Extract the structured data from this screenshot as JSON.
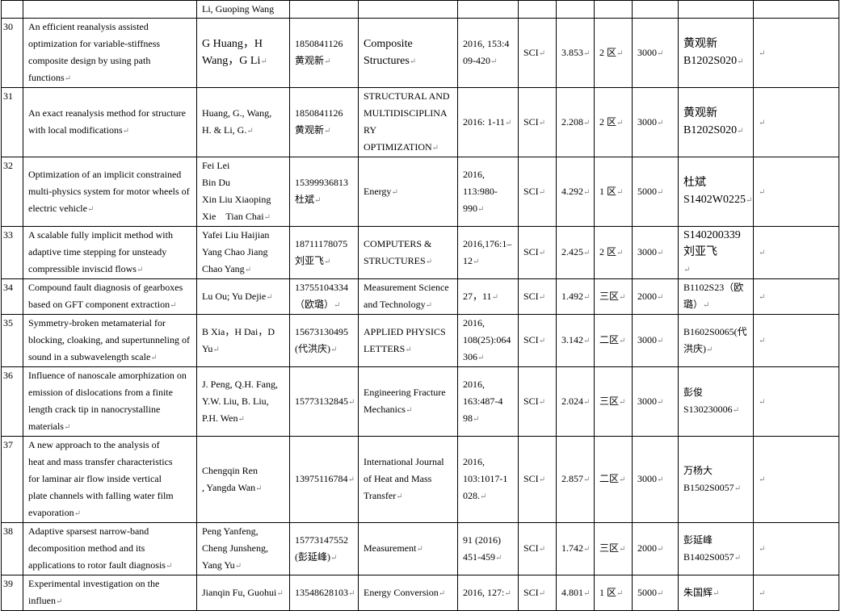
{
  "paragraph_mark": "↵",
  "rows": [
    {
      "cells": [
        "",
        "",
        "Li, Guoping Wang",
        "",
        "",
        "",
        "",
        "",
        "",
        "",
        "",
        ""
      ]
    },
    {
      "cells": [
        "30",
        "An efficient reanalysis assisted\noptimization for variable-stiffness\ncomposite design by using path functions",
        "G Huang，H\nWang，G Li",
        "1850841126\n黄观新",
        "Composite\nStructures",
        "2016, 153:4\n09-420",
        "SCI",
        "3.853",
        "2 区",
        "3000",
        "黄观新\nB1202S020",
        ""
      ]
    },
    {
      "cells": [
        "31",
        "An exact reanalysis method for structure\nwith local modifications",
        "Huang, G., Wang,\nH. & Li, G.",
        "1850841126\n黄观新",
        "STRUCTURAL AND\nMULTIDISCIPLINA\nRY OPTIMIZATION",
        "2016: 1-11",
        "SCI",
        "2.208",
        "2 区",
        "3000",
        "黄观新\nB1202S020",
        ""
      ]
    },
    {
      "cells": [
        "32",
        "Optimization of an implicit constrained\nmulti-physics system for motor wheels of\nelectric vehicle",
        "Fei Lei\nBin Du\nXin Liu Xiaoping\nXie　Tian Chai",
        "15399936813\n杜斌",
        "Energy",
        "2016,\n113:980-990",
        "SCI",
        "4.292",
        "1 区",
        "5000",
        "杜斌\nS1402W0225",
        ""
      ]
    },
    {
      "cells": [
        "33",
        "A scalable fully implicit method with\nadaptive time stepping for unsteady\ncompressible inviscid flows",
        "Yafei Liu Haijian\nYang Chao Jiang\nChao Yang",
        "18711178075\n刘亚飞",
        "COMPUTERS &\nSTRUCTURES",
        "2016,176:1–\n12",
        "SCI",
        "2.425",
        "2 区",
        "3000",
        "S140200339\n刘亚飞\n",
        ""
      ]
    },
    {
      "cells": [
        "34",
        "Compound fault diagnosis of gearboxes\nbased on GFT component extraction",
        "Lu Ou; Yu Dejie",
        "13755104334\n（欧璐）",
        "Measurement Science\nand Technology",
        "27，11",
        "SCI",
        "1.492",
        "三区",
        "2000",
        "B1102S23（欧\n璐）",
        ""
      ]
    },
    {
      "cells": [
        "35",
        "Symmetry-broken metamaterial for\nblocking, cloaking, and supertunneling of\nsound in a subwavelength scale",
        "B Xia，H Dai，D Yu",
        "15673130495\n(代洪庆)",
        "APPLIED PHYSICS\nLETTERS",
        "2016,\n108(25):064\n306",
        "SCI",
        "3.142",
        "二区",
        "3000",
        "B1602S0065(代\n洪庆)",
        ""
      ]
    },
    {
      "cells": [
        "36",
        "Influence of nanoscale amorphization on\nemission of dislocations from a finite\nlength crack tip in nanocrystalline\nmaterials",
        "J. Peng, Q.H. Fang,\nY.W. Liu, B. Liu,\nP.H. Wen",
        "15773132845",
        "Engineering Fracture\nMechanics",
        "2016,\n163:487-4\n98",
        "SCI",
        "2.024",
        "三区",
        "3000",
        "彭俊\nS130230006",
        ""
      ]
    },
    {
      "cells": [
        "37",
        "A new approach to the analysis of\nheat and mass transfer characteristics\nfor laminar air flow inside vertical\nplate channels with falling water film\nevaporation",
        "Chengqin Ren\n, Yangda Wan",
        "13975116784",
        "International Journal\nof Heat and Mass\nTransfer",
        "2016,\n103:1017-1\n028.",
        "SCI",
        "2.857",
        "二区",
        "3000",
        "万杨大\nB1502S0057",
        ""
      ]
    },
    {
      "cells": [
        "38",
        "Adaptive sparsest narrow-band\ndecomposition method and its\napplications to rotor fault diagnosis",
        "Peng Yanfeng,\nCheng Junsheng,\nYang Yu",
        "15773147552\n(彭延峰)",
        "Measurement",
        "91 (2016)\n451-459",
        "SCI",
        "1.742",
        "三区",
        "2000",
        "彭延峰\nB1402S0057",
        ""
      ]
    },
    {
      "cells": [
        "39",
        "Experimental investigation on the influen",
        "Jianqin Fu, Guohui",
        "13548628103",
        "Energy Conversion",
        "2016, 127:",
        "SCI",
        "4.801",
        "1 区",
        "5000",
        "朱国辉",
        ""
      ]
    }
  ]
}
